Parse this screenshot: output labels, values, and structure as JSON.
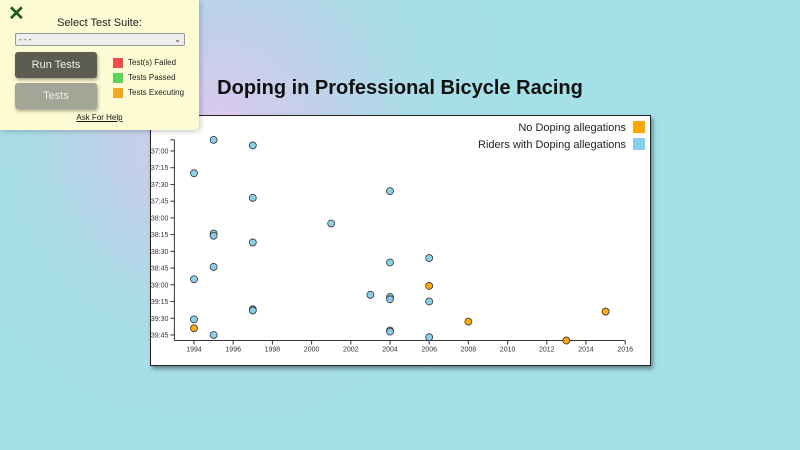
{
  "panel": {
    "close_icon": "x-icon",
    "suite_label": "Select Test Suite:",
    "suite_selected": "- - -",
    "run_label": "Run Tests",
    "tests_label": "Tests",
    "legend": [
      {
        "label": "Test(s) Failed",
        "color": "#f44c4c"
      },
      {
        "label": "Tests Passed",
        "color": "#5ad45a"
      },
      {
        "label": "Tests Executing",
        "color": "#f5a623"
      }
    ],
    "help_label": "Ask For Help"
  },
  "chart_data": {
    "type": "scatter",
    "title": "Doping in Professional Bicycle Racing",
    "xlabel": "",
    "ylabel": "",
    "xlim": [
      1993,
      2016
    ],
    "ylim": [
      "36:50",
      "39:50"
    ],
    "x_ticks": [
      "1994",
      "1996",
      "1998",
      "2000",
      "2002",
      "2004",
      "2006",
      "2008",
      "2010",
      "2012",
      "2014",
      "2016"
    ],
    "y_ticks": [
      "37:00",
      "37:15",
      "37:30",
      "37:45",
      "38:00",
      "38:15",
      "38:30",
      "38:45",
      "39:00",
      "39:15",
      "39:30",
      "39:45"
    ],
    "y_reversed": true,
    "grid": false,
    "legend_position": "top-right",
    "legend": [
      {
        "name": "No Doping allegations",
        "color": "#ffa500"
      },
      {
        "name": "Riders with Doping allegations",
        "color": "#87ceeb"
      }
    ],
    "points": [
      {
        "year": 1995,
        "time": "36:50",
        "doping": true
      },
      {
        "year": 1997,
        "time": "36:55",
        "doping": true
      },
      {
        "year": 1994,
        "time": "37:20",
        "doping": true
      },
      {
        "year": 2004,
        "time": "37:36",
        "doping": true
      },
      {
        "year": 1997,
        "time": "37:42",
        "doping": true
      },
      {
        "year": 2001,
        "time": "38:05",
        "doping": true
      },
      {
        "year": 1995,
        "time": "38:14",
        "doping": true
      },
      {
        "year": 1995,
        "time": "38:16",
        "doping": true
      },
      {
        "year": 1997,
        "time": "38:22",
        "doping": true
      },
      {
        "year": 2006,
        "time": "38:36",
        "doping": true
      },
      {
        "year": 2004,
        "time": "38:40",
        "doping": true
      },
      {
        "year": 1995,
        "time": "38:44",
        "doping": true
      },
      {
        "year": 1994,
        "time": "38:55",
        "doping": true
      },
      {
        "year": 2006,
        "time": "39:01",
        "doping": false
      },
      {
        "year": 2003,
        "time": "39:09",
        "doping": true
      },
      {
        "year": 2004,
        "time": "39:11",
        "doping": true
      },
      {
        "year": 2004,
        "time": "39:13",
        "doping": true
      },
      {
        "year": 2006,
        "time": "39:15",
        "doping": true
      },
      {
        "year": 1997,
        "time": "39:22",
        "doping": true
      },
      {
        "year": 1997,
        "time": "39:23",
        "doping": true
      },
      {
        "year": 2015,
        "time": "39:24",
        "doping": false
      },
      {
        "year": 1994,
        "time": "39:31",
        "doping": true
      },
      {
        "year": 2008,
        "time": "39:33",
        "doping": false
      },
      {
        "year": 1994,
        "time": "39:39",
        "doping": false
      },
      {
        "year": 2004,
        "time": "39:41",
        "doping": true
      },
      {
        "year": 2004,
        "time": "39:42",
        "doping": true
      },
      {
        "year": 1995,
        "time": "39:45",
        "doping": true
      },
      {
        "year": 2006,
        "time": "39:47",
        "doping": true
      },
      {
        "year": 2013,
        "time": "39:50",
        "doping": false
      }
    ]
  }
}
